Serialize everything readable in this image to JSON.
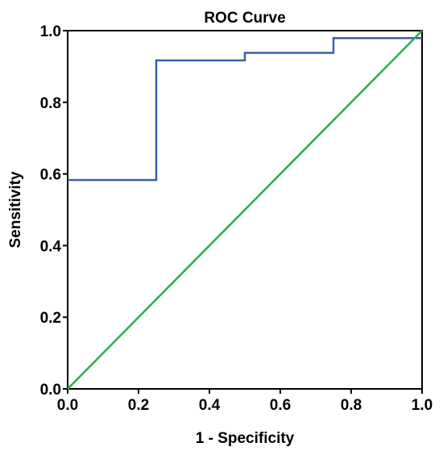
{
  "chart_data": {
    "type": "line",
    "title": "ROC Curve",
    "xlabel": "1 - Specificity",
    "ylabel": "Sensitivity",
    "xlim": [
      0,
      1
    ],
    "ylim": [
      0,
      1
    ],
    "grid": false,
    "x_ticks": [
      "0.0",
      "0.2",
      "0.4",
      "0.6",
      "0.8",
      "1.0"
    ],
    "y_ticks": [
      "0.0",
      "0.2",
      "0.4",
      "0.6",
      "0.8",
      "1.0"
    ],
    "series": [
      {
        "color": "#3a5fad",
        "style": "step",
        "x": [
          0,
          0.25,
          0.25,
          0.5,
          0.5,
          0.75,
          0.75,
          1.0
        ],
        "y": [
          0.583,
          0.583,
          0.917,
          0.917,
          0.938,
          0.938,
          0.979,
          0.979
        ]
      },
      {
        "color": "#22b24c",
        "style": "reference",
        "x": [
          0,
          1
        ],
        "y": [
          0,
          1
        ]
      }
    ]
  }
}
